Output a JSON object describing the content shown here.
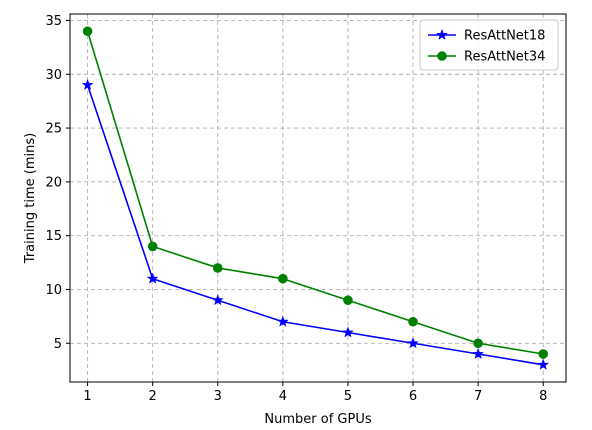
{
  "chart_data": {
    "type": "line",
    "title": "",
    "xlabel": "Number of GPUs",
    "ylabel": "Training time (mins)",
    "x": [
      1,
      2,
      3,
      4,
      5,
      6,
      7,
      8
    ],
    "xlim": [
      0.73,
      8.35
    ],
    "ylim": [
      1.4,
      35.6
    ],
    "xticks": [
      1,
      2,
      3,
      4,
      5,
      6,
      7,
      8
    ],
    "yticks": [
      5,
      10,
      15,
      20,
      25,
      30,
      35
    ],
    "grid": true,
    "legend_position": "top-right",
    "series": [
      {
        "name": "ResAttNet18",
        "color": "#0000ff",
        "marker": "star",
        "values": [
          29,
          11,
          9,
          7,
          6,
          5,
          4,
          3
        ]
      },
      {
        "name": "ResAttNet34",
        "color": "#008000",
        "marker": "circle",
        "values": [
          34,
          14,
          12,
          11,
          9,
          7,
          5,
          4
        ]
      }
    ]
  }
}
